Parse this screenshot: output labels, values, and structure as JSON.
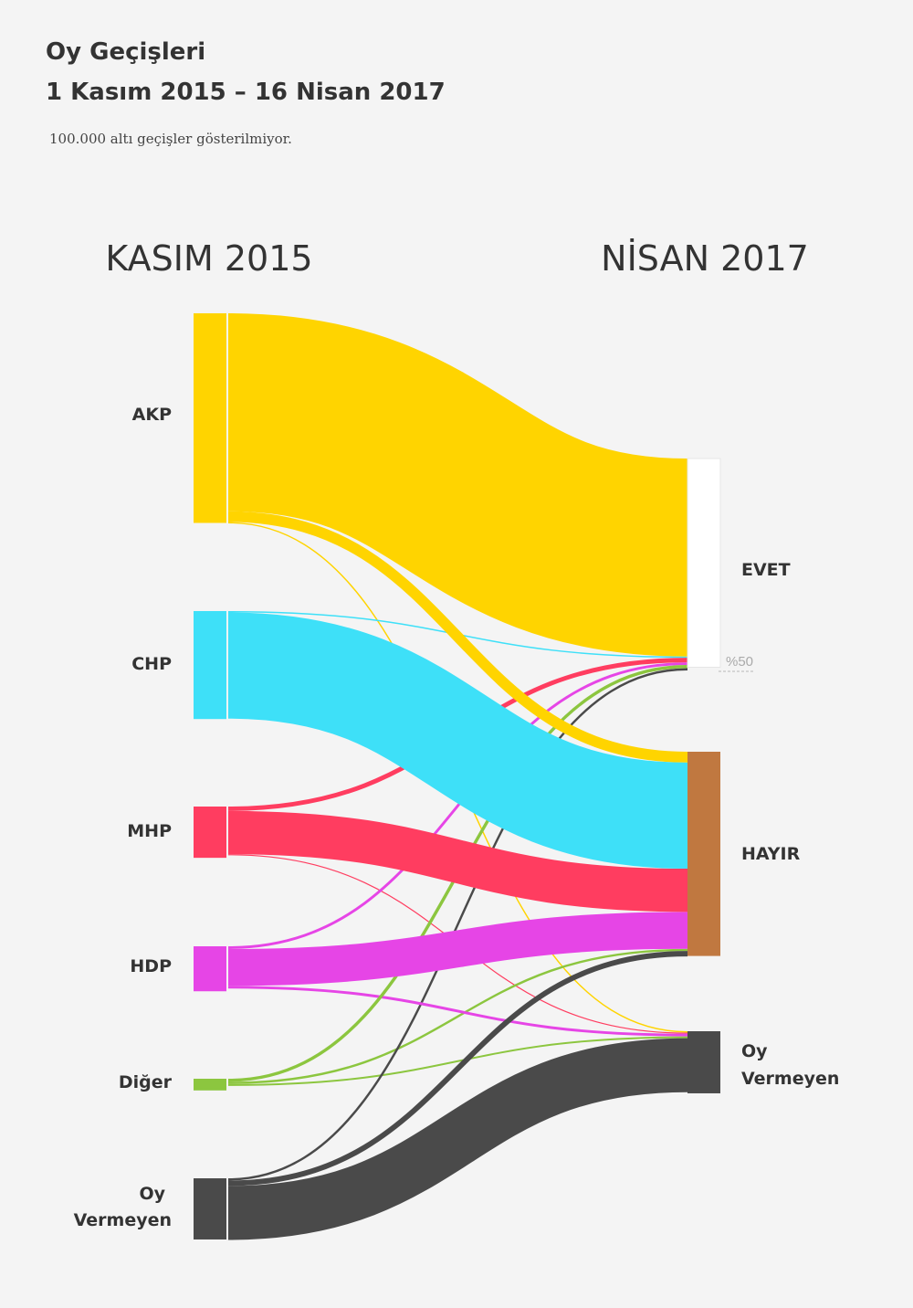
{
  "title": {
    "line1": "Oy Geçişleri",
    "line2": "1 Kasım 2015 – 16 Nisan 2017"
  },
  "subtitle": "100.000 altı geçişler gösterilmiyor.",
  "colors": {
    "background": "#f4f4f4",
    "AKP": "#ffd400",
    "CHP": "#3ee0f8",
    "MHP": "#ff3d60",
    "HDP": "#e645e6",
    "Diger": "#8cc63f",
    "OyVermeyen": "#4a4a4a",
    "EVET": "#ffffff",
    "HAYIR": "#c07840"
  },
  "chart_data": {
    "type": "sankey",
    "title": "Oy Geçişleri 1 Kasım 2015 – 16 Nisan 2017",
    "unit": "thousand voters (approximate, estimated from band widths)",
    "columns": [
      "KASIM 2015",
      "NİSAN 2017"
    ],
    "midline_label": "%50",
    "sources": [
      {
        "id": "AKP",
        "label": "AKP",
        "color": "#ffd400",
        "value": 23300
      },
      {
        "id": "CHP",
        "label": "CHP",
        "color": "#3ee0f8",
        "value": 12000
      },
      {
        "id": "MHP",
        "label": "MHP",
        "color": "#ff3d60",
        "value": 5700
      },
      {
        "id": "HDP",
        "label": "HDP",
        "color": "#e645e6",
        "value": 5000
      },
      {
        "id": "Diger",
        "label": "Diğer",
        "color": "#8cc63f",
        "value": 1300
      },
      {
        "id": "OyVermeyen",
        "label": "Oy Vermeyen",
        "color": "#4a4a4a",
        "value": 6800
      }
    ],
    "targets": [
      {
        "id": "EVET",
        "label": "EVET",
        "color": "#ffffff",
        "value": 23200
      },
      {
        "id": "HAYIR",
        "label": "HAYIR",
        "color": "#c07840",
        "value": 22700
      },
      {
        "id": "OyVermeyenT",
        "label": "Oy Vermeyen",
        "color": "#4a4a4a",
        "value": 6900
      }
    ],
    "flows": [
      {
        "from": "AKP",
        "to": "EVET",
        "value": 22000
      },
      {
        "from": "AKP",
        "to": "HAYIR",
        "value": 1200
      },
      {
        "from": "AKP",
        "to": "OyVermeyenT",
        "value": 150
      },
      {
        "from": "CHP",
        "to": "EVET",
        "value": 150
      },
      {
        "from": "CHP",
        "to": "HAYIR",
        "value": 11800
      },
      {
        "from": "MHP",
        "to": "EVET",
        "value": 500
      },
      {
        "from": "MHP",
        "to": "HAYIR",
        "value": 4800
      },
      {
        "from": "MHP",
        "to": "OyVermeyenT",
        "value": 100
      },
      {
        "from": "HDP",
        "to": "EVET",
        "value": 300
      },
      {
        "from": "HDP",
        "to": "HAYIR",
        "value": 4100
      },
      {
        "from": "HDP",
        "to": "OyVermeyenT",
        "value": 300
      },
      {
        "from": "Diger",
        "to": "EVET",
        "value": 350
      },
      {
        "from": "Diger",
        "to": "HAYIR",
        "value": 250
      },
      {
        "from": "Diger",
        "to": "OyVermeyenT",
        "value": 200
      },
      {
        "from": "OyVermeyen",
        "to": "EVET",
        "value": 250
      },
      {
        "from": "OyVermeyen",
        "to": "HAYIR",
        "value": 600
      },
      {
        "from": "OyVermeyen",
        "to": "OyVermeyenT",
        "value": 6000
      }
    ]
  }
}
